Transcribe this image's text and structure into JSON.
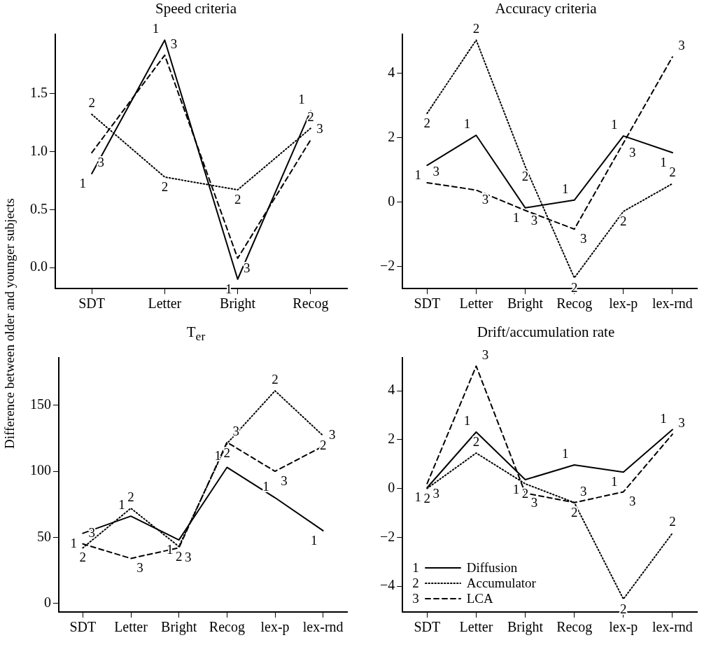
{
  "chart_data": [
    {
      "type": "line",
      "title": "Speed criteria",
      "ylabel": "Difference between older and younger subjects",
      "categories": [
        "SDT",
        "Letter",
        "Bright",
        "Recog"
      ],
      "ylim": [
        -0.18,
        2.01
      ],
      "yticks": [
        {
          "value": 0,
          "label": "0.0"
        },
        0.5,
        {
          "value": 1,
          "label": "1.0"
        },
        1.5
      ],
      "grid": false,
      "legend": false,
      "series": [
        {
          "color": "#000000",
          "line_style": "solid",
          "values": [
            0.81,
            1.96,
            -0.1,
            1.35
          ]
        },
        {
          "color": "#000000",
          "line_style": "dotted",
          "values": [
            1.32,
            0.78,
            0.67,
            1.2
          ]
        },
        {
          "color": "#000000",
          "line_style": "dashed",
          "values": [
            0.99,
            1.83,
            0.08,
            1.1
          ]
        }
      ],
      "annotations": [
        {
          "text": "1",
          "x": "SDT",
          "y": 0.81
        },
        {
          "text": "1",
          "x": "Letter",
          "y": 1.96
        },
        {
          "text": "1",
          "x": "Bright",
          "y": -0.1
        },
        {
          "text": "1",
          "x": "Recog",
          "y": 1.35
        },
        {
          "text": "2",
          "x": "SDT",
          "y": 1.32
        },
        {
          "text": "2",
          "x": "Letter",
          "y": 0.78
        },
        {
          "text": "2",
          "x": "Bright",
          "y": 0.67
        },
        {
          "text": "2",
          "x": "Recog",
          "y": 1.2
        },
        {
          "text": "3",
          "x": "SDT",
          "y": 0.99
        },
        {
          "text": "3",
          "x": "Letter",
          "y": 1.83
        },
        {
          "text": "3",
          "x": "Bright",
          "y": 0.08
        },
        {
          "text": "3",
          "x": "Recog",
          "y": 1.1
        }
      ]
    },
    {
      "type": "line",
      "title": "Accuracy criteria",
      "categories": [
        "SDT",
        "Letter",
        "Bright",
        "Recog",
        "lex-p",
        "lex-rnd"
      ],
      "ylim": [
        -2.68,
        5.2
      ],
      "yticks": [
        -2,
        0,
        2,
        4
      ],
      "grid": false,
      "legend": false,
      "series": [
        {
          "color": "#000000",
          "line_style": "solid",
          "values": [
            1.14,
            2.07,
            -0.18,
            0.06,
            2.05,
            1.53
          ]
        },
        {
          "color": "#000000",
          "line_style": "dotted",
          "values": [
            2.75,
            5.02,
            1.1,
            -2.35,
            -0.29,
            0.57
          ]
        },
        {
          "color": "#000000",
          "line_style": "dashed",
          "values": [
            0.6,
            0.37,
            -0.26,
            -0.84,
            1.83,
            4.5
          ]
        }
      ],
      "annotations": [
        {
          "text": "1",
          "x": "SDT",
          "y": 1.14
        },
        {
          "text": "1",
          "x": "Letter",
          "y": 2.07
        },
        {
          "text": "1",
          "x": "Bright",
          "y": -0.18
        },
        {
          "text": "1",
          "x": "Recog",
          "y": 0.06
        },
        {
          "text": "1",
          "x": "lex-p",
          "y": 2.05
        },
        {
          "text": "1",
          "x": "lex-rnd",
          "y": 1.53
        },
        {
          "text": "2",
          "x": "SDT",
          "y": 2.75
        },
        {
          "text": "2",
          "x": "Letter",
          "y": 5.02
        },
        {
          "text": "2",
          "x": "Bright",
          "y": 1.1
        },
        {
          "text": "2",
          "x": "Recog",
          "y": -2.35
        },
        {
          "text": "2",
          "x": "lex-p",
          "y": -0.29
        },
        {
          "text": "2",
          "x": "lex-rnd",
          "y": 0.57
        },
        {
          "text": "3",
          "x": "SDT",
          "y": 0.6
        },
        {
          "text": "3",
          "x": "Letter",
          "y": 0.37
        },
        {
          "text": "3",
          "x": "Bright",
          "y": -0.26
        },
        {
          "text": "3",
          "x": "Recog",
          "y": -0.84
        },
        {
          "text": "3",
          "x": "lex-p",
          "y": 1.83
        },
        {
          "text": "3",
          "x": "lex-rnd",
          "y": 4.5
        }
      ]
    },
    {
      "type": "line",
      "title": "T$_{er}$",
      "categories": [
        "SDT",
        "Letter",
        "Bright",
        "Recog",
        "lex-p",
        "lex-rnd"
      ],
      "ylim": [
        -6.6,
        186
      ],
      "yticks": [
        0,
        50,
        100,
        150
      ],
      "grid": false,
      "legend": false,
      "series": [
        {
          "color": "#000000",
          "line_style": "solid",
          "values": [
            53,
            66,
            48,
            103,
            80,
            55
          ]
        },
        {
          "color": "#000000",
          "line_style": "dotted",
          "values": [
            42,
            72,
            43,
            121,
            161,
            127
          ]
        },
        {
          "color": "#000000",
          "line_style": "dashed",
          "values": [
            45,
            34,
            42,
            122,
            100,
            119
          ]
        }
      ],
      "annotations": [
        {
          "text": "1",
          "x": "SDT",
          "y": 53
        },
        {
          "text": "1",
          "x": "Letter",
          "y": 66
        },
        {
          "text": "1",
          "x": "Bright",
          "y": 48
        },
        {
          "text": "1",
          "x": "Recog",
          "y": 103
        },
        {
          "text": "1",
          "x": "lex-p",
          "y": 80
        },
        {
          "text": "1",
          "x": "lex-rnd",
          "y": 55
        },
        {
          "text": "2",
          "x": "SDT",
          "y": 42
        },
        {
          "text": "2",
          "x": "Letter",
          "y": 72
        },
        {
          "text": "2",
          "x": "Bright",
          "y": 43
        },
        {
          "text": "2",
          "x": "Recog",
          "y": 121
        },
        {
          "text": "2",
          "x": "lex-p",
          "y": 161
        },
        {
          "text": "2",
          "x": "lex-rnd",
          "y": 127
        },
        {
          "text": "3",
          "x": "SDT",
          "y": 45
        },
        {
          "text": "3",
          "x": "Letter",
          "y": 34
        },
        {
          "text": "3",
          "x": "Bright",
          "y": 42
        },
        {
          "text": "3",
          "x": "Recog",
          "y": 122
        },
        {
          "text": "3",
          "x": "lex-p",
          "y": 100
        },
        {
          "text": "3",
          "x": "lex-rnd",
          "y": 119
        }
      ]
    },
    {
      "type": "line",
      "title": "Drift/accumulation rate",
      "categories": [
        "SDT",
        "Letter",
        "Bright",
        "Recog",
        "lex-p",
        "lex-rnd"
      ],
      "ylim": [
        -5.06,
        5.35
      ],
      "yticks": [
        -4,
        -2,
        0,
        2,
        4
      ],
      "grid": false,
      "legend": "bottom left",
      "series": [
        {
          "name": "Diffusion",
          "color": "#000000",
          "line_style": "solid",
          "values": [
            0.03,
            2.31,
            0.36,
            0.96,
            0.67,
            2.41
          ]
        },
        {
          "name": "Accumulator",
          "color": "#000000",
          "line_style": "dotted",
          "values": [
            0,
            1.45,
            0.19,
            -0.58,
            -4.53,
            -1.83
          ]
        },
        {
          "name": "LCA",
          "color": "#000000",
          "line_style": "dashed",
          "values": [
            0.2,
            5.01,
            -0.19,
            -0.58,
            -0.14,
            2.22
          ]
        }
      ],
      "annotations": [
        {
          "text": "1",
          "x": "SDT",
          "y": 0.03
        },
        {
          "text": "1",
          "x": "Letter",
          "y": 2.31
        },
        {
          "text": "1",
          "x": "Bright",
          "y": 0.36
        },
        {
          "text": "1",
          "x": "Recog",
          "y": 0.96
        },
        {
          "text": "1",
          "x": "lex-p",
          "y": 0.67
        },
        {
          "text": "1",
          "x": "lex-rnd",
          "y": 2.41
        },
        {
          "text": "2",
          "x": "SDT",
          "y": 0
        },
        {
          "text": "2",
          "x": "Letter",
          "y": 1.45
        },
        {
          "text": "2",
          "x": "Bright",
          "y": 0.19
        },
        {
          "text": "2",
          "x": "Recog",
          "y": -0.58
        },
        {
          "text": "2",
          "x": "lex-p",
          "y": -4.53
        },
        {
          "text": "2",
          "x": "lex-rnd",
          "y": -1.83
        },
        {
          "text": "3",
          "x": "SDT",
          "y": 0.2
        },
        {
          "text": "3",
          "x": "Letter",
          "y": 5.01
        },
        {
          "text": "3",
          "x": "Bright",
          "y": -0.19
        },
        {
          "text": "3",
          "x": "Recog",
          "y": -0.58
        },
        {
          "text": "3",
          "x": "lex-p",
          "y": -0.14
        },
        {
          "text": "3",
          "x": "lex-rnd",
          "y": 2.22
        },
        "1",
        "2",
        "3"
      ]
    }
  ]
}
